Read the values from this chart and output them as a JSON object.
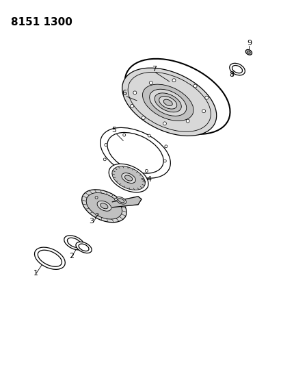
{
  "title": "8151 1300",
  "background_color": "#ffffff",
  "line_color": "#000000",
  "label_color": "#000000",
  "title_fontsize": 11,
  "label_fontsize": 8,
  "figsize": [
    4.11,
    5.33
  ],
  "dpi": 100,
  "parts": {
    "p1": "1",
    "p2": "2",
    "p3": "3",
    "p4": "4",
    "p5": "5",
    "p6": "6",
    "p7": "7",
    "p8": "8",
    "p9": "9"
  },
  "gray_fill": "#d8d8d8",
  "gray_mid": "#c0c0c0",
  "gray_dark": "#a8a8a8",
  "white_fill": "#ffffff"
}
